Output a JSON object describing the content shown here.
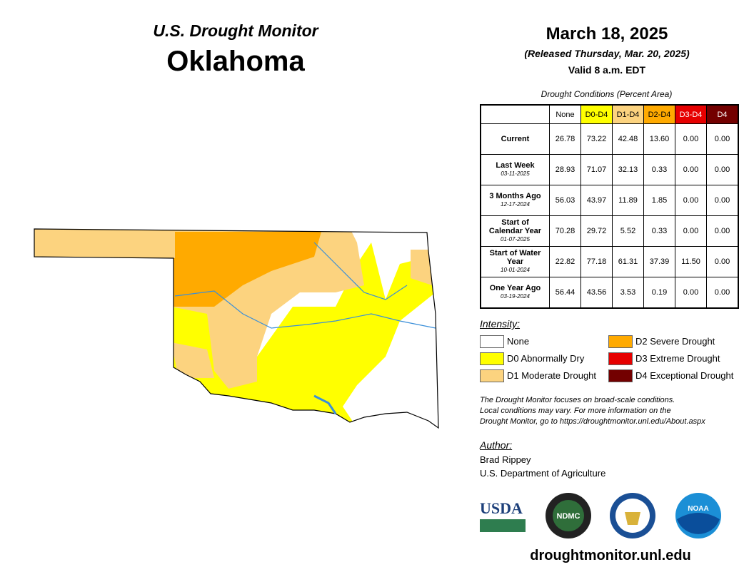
{
  "header": {
    "title": "U.S. Drought Monitor",
    "state": "Oklahoma",
    "date": "March 18, 2025",
    "released": "(Released Thursday, Mar. 20, 2025)",
    "valid": "Valid 8 a.m. EDT"
  },
  "table": {
    "caption": "Drought Conditions (Percent Area)",
    "columns": [
      {
        "label": "None",
        "color": "#ffffff"
      },
      {
        "label": "D0-D4",
        "color": "#ffff00"
      },
      {
        "label": "D1-D4",
        "color": "#fcd37f"
      },
      {
        "label": "D2-D4",
        "color": "#ffaa00"
      },
      {
        "label": "D3-D4",
        "color": "#e60000"
      },
      {
        "label": "D4",
        "color": "#730000"
      }
    ],
    "rows": [
      {
        "label": "Current",
        "values": [
          "26.78",
          "73.22",
          "42.48",
          "13.60",
          "0.00",
          "0.00"
        ]
      },
      {
        "label": "Last Week",
        "date": "03-11-2025",
        "values": [
          "28.93",
          "71.07",
          "32.13",
          "0.33",
          "0.00",
          "0.00"
        ]
      },
      {
        "label": "3 Months Ago",
        "date": "12-17-2024",
        "values": [
          "56.03",
          "43.97",
          "11.89",
          "1.85",
          "0.00",
          "0.00"
        ]
      },
      {
        "label": "Start of Calendar Year",
        "date": "01-07-2025",
        "values": [
          "70.28",
          "29.72",
          "5.52",
          "0.33",
          "0.00",
          "0.00"
        ]
      },
      {
        "label": "Start of Water Year",
        "date": "10-01-2024",
        "values": [
          "22.82",
          "77.18",
          "61.31",
          "37.39",
          "11.50",
          "0.00"
        ]
      },
      {
        "label": "One Year Ago",
        "date": "03-19-2024",
        "values": [
          "56.44",
          "43.56",
          "3.53",
          "0.19",
          "0.00",
          "0.00"
        ]
      }
    ]
  },
  "legend": {
    "title": "Intensity:",
    "items": [
      {
        "label": "None",
        "color": "#ffffff"
      },
      {
        "label": "D0 Abnormally Dry",
        "color": "#ffff00"
      },
      {
        "label": "D1 Moderate Drought",
        "color": "#fcd37f"
      },
      {
        "label": "D2 Severe Drought",
        "color": "#ffaa00"
      },
      {
        "label": "D3 Extreme Drought",
        "color": "#e60000"
      },
      {
        "label": "D4 Exceptional Drought",
        "color": "#730000"
      }
    ]
  },
  "note": [
    "The Drought Monitor focuses on broad-scale conditions.",
    "Local conditions may vary. For more information on the",
    "Drought Monitor, go to https://droughtmonitor.unl.edu/About.aspx"
  ],
  "author": {
    "title": "Author:",
    "name": "Brad Rippey",
    "org": "U.S. Department of Agriculture"
  },
  "logos": {
    "usda": "USDA",
    "ndmc": "NDMC",
    "noaa": "NOAA"
  },
  "footer": "droughtmonitor.unl.edu"
}
